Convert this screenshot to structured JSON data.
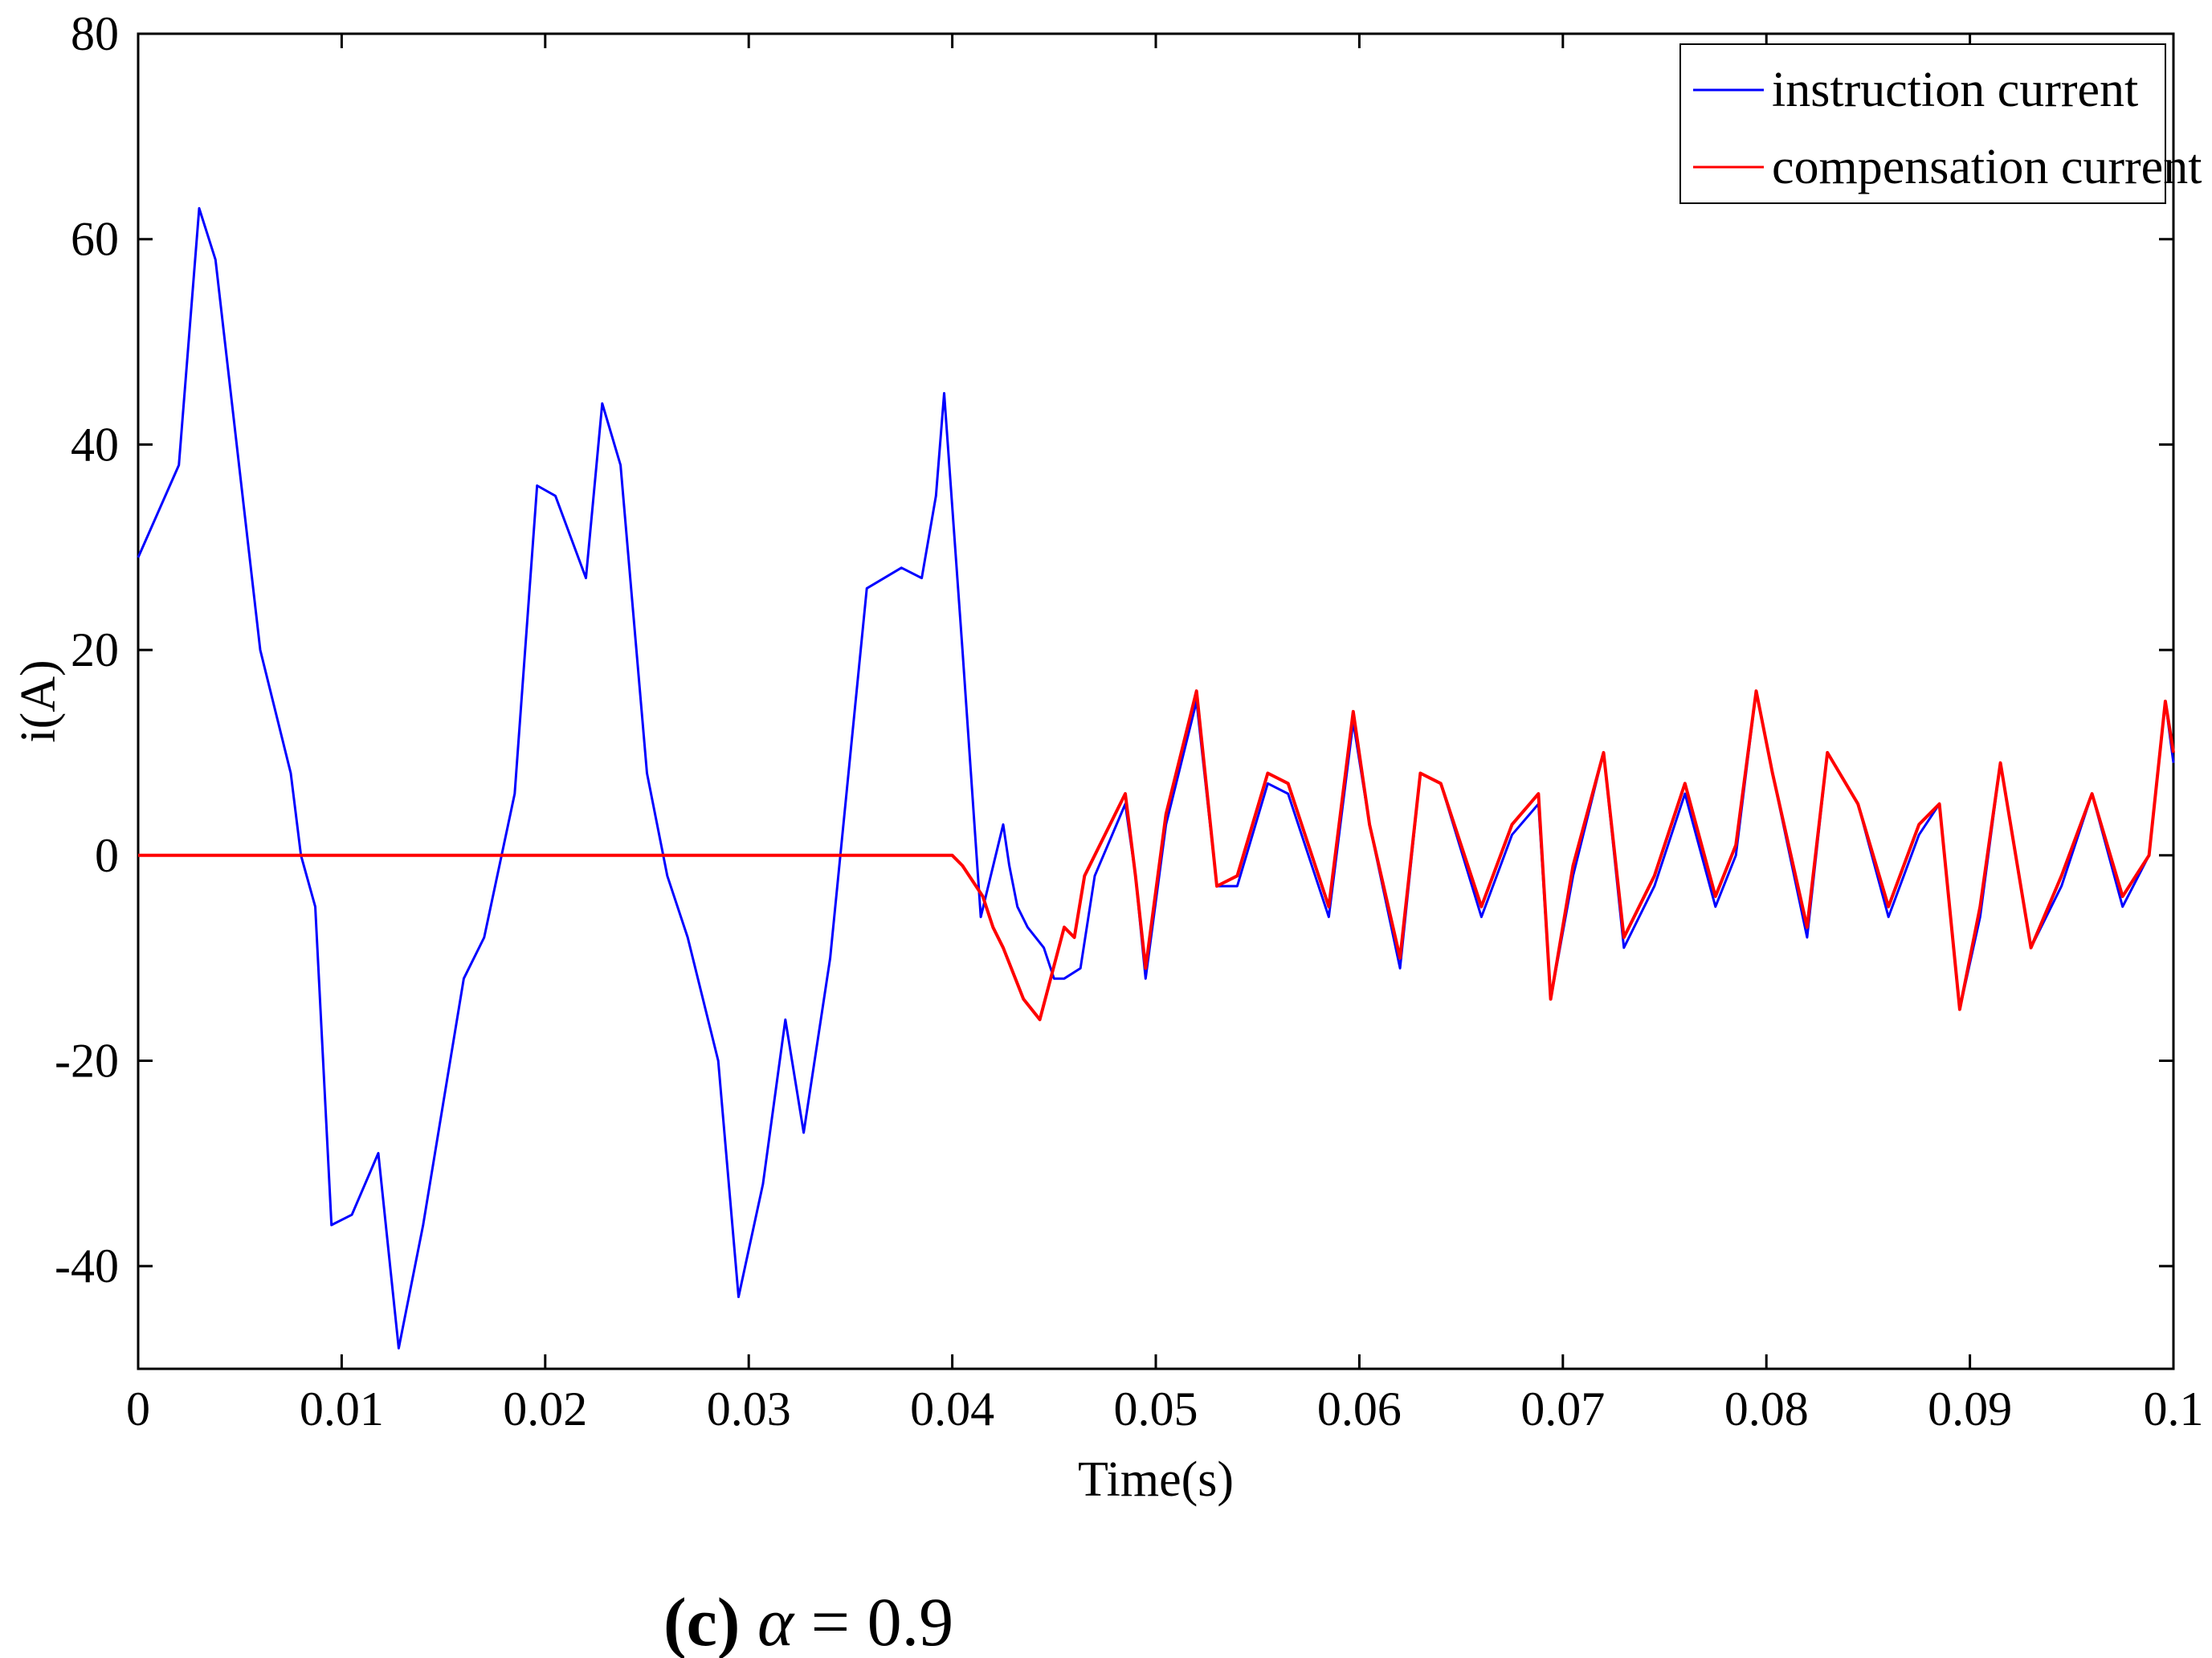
{
  "chart_data": {
    "type": "line",
    "xlabel": "Time(s)",
    "ylabel": "i(A)",
    "xlim": [
      0,
      0.1
    ],
    "ylim": [
      -50,
      80
    ],
    "xticks": [
      0,
      0.01,
      0.02,
      0.03,
      0.04,
      0.05,
      0.06,
      0.07,
      0.08,
      0.09,
      0.1
    ],
    "xtick_labels": [
      "0",
      "0.01",
      "0.02",
      "0.03",
      "0.04",
      "0.05",
      "0.06",
      "0.07",
      "0.08",
      "0.09",
      "0.1"
    ],
    "yticks": [
      -40,
      -20,
      0,
      20,
      40,
      60,
      80
    ],
    "ytick_labels": [
      "-40",
      "-20",
      "0",
      "20",
      "40",
      "60",
      "80"
    ],
    "grid": false,
    "legend_position": "top-right",
    "series": [
      {
        "name": "instruction current",
        "color": "#0000ff",
        "x": [
          0,
          0.002,
          0.003,
          0.0038,
          0.006,
          0.0075,
          0.008,
          0.0087,
          0.0095,
          0.0105,
          0.0118,
          0.0128,
          0.014,
          0.016,
          0.017,
          0.0185,
          0.0196,
          0.0205,
          0.022,
          0.0228,
          0.0237,
          0.025,
          0.026,
          0.027,
          0.0285,
          0.0295,
          0.0307,
          0.0318,
          0.0327,
          0.034,
          0.0358,
          0.0375,
          0.0385,
          0.0392,
          0.0396,
          0.0405,
          0.0414,
          0.0425,
          0.0428,
          0.0432,
          0.0437,
          0.0445,
          0.045,
          0.0455,
          0.0463,
          0.047,
          0.0485,
          0.049,
          0.0495,
          0.0505,
          0.052,
          0.053,
          0.054,
          0.0555,
          0.0565,
          0.0585,
          0.0597,
          0.0605,
          0.062,
          0.063,
          0.064,
          0.066,
          0.0675,
          0.0688,
          0.0694,
          0.0705,
          0.072,
          0.073,
          0.0745,
          0.076,
          0.0775,
          0.0785,
          0.0795,
          0.0803,
          0.082,
          0.083,
          0.0845,
          0.086,
          0.0875,
          0.0885,
          0.0895,
          0.0905,
          0.0915,
          0.093,
          0.0945,
          0.096,
          0.0975,
          0.0988,
          0.0996,
          0.1
        ],
        "y": [
          29,
          38,
          63,
          58,
          20,
          8,
          0,
          -5,
          -36,
          -35,
          -29,
          -48,
          -36,
          -12,
          -8,
          6,
          36,
          35,
          27,
          44,
          38,
          8,
          -2,
          -8,
          -20,
          -43,
          -32,
          -16,
          -27,
          -10,
          26,
          28,
          27,
          35,
          45,
          20,
          -6,
          3,
          -1,
          -5,
          -7,
          -9,
          -12,
          -12,
          -11,
          -2,
          5,
          -2,
          -12,
          3,
          15,
          -3,
          -3,
          7,
          6,
          -6,
          13,
          3,
          -11,
          8,
          7,
          -6,
          2,
          5,
          -14,
          -2,
          10,
          -9,
          -3,
          6,
          -5,
          0,
          16,
          8,
          -8,
          10,
          5,
          -6,
          2,
          5,
          -15,
          -6,
          9,
          -9,
          -3,
          6,
          -5,
          0,
          15,
          9
        ]
      },
      {
        "name": "compensation current",
        "color": "#ff0000",
        "x": [
          0,
          0.01,
          0.02,
          0.03,
          0.04,
          0.0405,
          0.0415,
          0.042,
          0.0425,
          0.0435,
          0.0443,
          0.0455,
          0.046,
          0.0465,
          0.0485,
          0.049,
          0.0495,
          0.0505,
          0.052,
          0.053,
          0.054,
          0.0555,
          0.0565,
          0.0585,
          0.0597,
          0.0605,
          0.062,
          0.063,
          0.064,
          0.066,
          0.0675,
          0.0688,
          0.0694,
          0.0705,
          0.072,
          0.073,
          0.0745,
          0.076,
          0.0775,
          0.0785,
          0.0795,
          0.0803,
          0.082,
          0.083,
          0.0845,
          0.086,
          0.0875,
          0.0885,
          0.0895,
          0.0905,
          0.0915,
          0.093,
          0.0945,
          0.096,
          0.0975,
          0.0988,
          0.0996,
          0.1
        ],
        "y": [
          0,
          0,
          0,
          0,
          0,
          -1,
          -4,
          -7,
          -9,
          -14,
          -16,
          -7,
          -8,
          -2,
          6,
          -2,
          -11,
          4,
          16,
          -3,
          -2,
          8,
          7,
          -5,
          14,
          3,
          -10,
          8,
          7,
          -5,
          3,
          6,
          -14,
          -1,
          10,
          -8,
          -2,
          7,
          -4,
          1,
          16,
          8,
          -7,
          10,
          5,
          -5,
          3,
          5,
          -15,
          -5,
          9,
          -9,
          -2,
          6,
          -4,
          0,
          15,
          10
        ]
      }
    ],
    "caption": {
      "label": "(c)",
      "symbol": "α",
      "expression": " = 0.9"
    }
  }
}
